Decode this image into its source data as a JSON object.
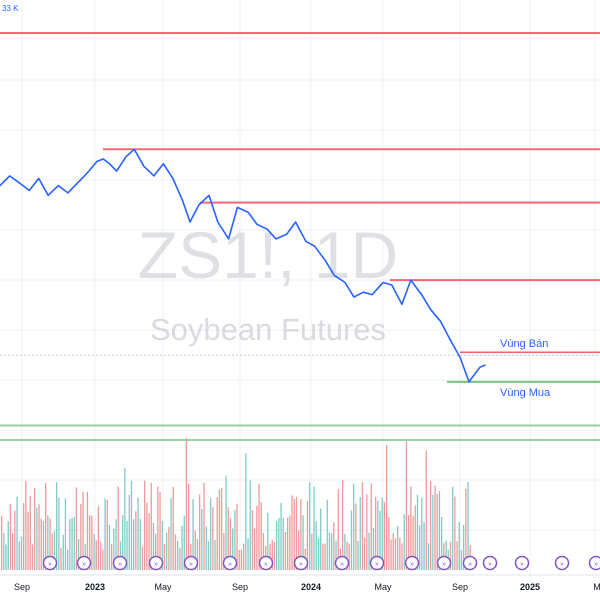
{
  "chart_data": {
    "type": "line",
    "symbol": "ZS1!, 1D",
    "name": "Soybean Futures",
    "volume_label": "33 K",
    "x_ticks": [
      "Sep",
      "2023",
      "May",
      "Sep",
      "2024",
      "May",
      "Sep",
      "2025",
      "M"
    ],
    "price_series": {
      "x": [
        "2022-07-01",
        "2022-07-15",
        "2022-08-01",
        "2022-08-20",
        "2022-09-05",
        "2022-09-20",
        "2022-10-05",
        "2022-10-20",
        "2022-11-05",
        "2022-11-20",
        "2022-12-05",
        "2022-12-20",
        "2023-01-05",
        "2023-01-15",
        "2023-01-25",
        "2023-02-05",
        "2023-02-20",
        "2023-03-05",
        "2023-03-20",
        "2023-04-05",
        "2023-04-20",
        "2023-05-05",
        "2023-05-20",
        "2023-06-01",
        "2023-06-15",
        "2023-07-01",
        "2023-07-15",
        "2023-08-01",
        "2023-08-15",
        "2023-09-01",
        "2023-09-15",
        "2023-10-01",
        "2023-10-15",
        "2023-11-01",
        "2023-11-15",
        "2023-12-01",
        "2023-12-15",
        "2024-01-01",
        "2024-01-15",
        "2024-02-01",
        "2024-02-15",
        "2024-03-01",
        "2024-03-15",
        "2024-04-01",
        "2024-04-15",
        "2024-05-01",
        "2024-05-15",
        "2024-06-01",
        "2024-06-15",
        "2024-07-01",
        "2024-07-15",
        "2024-08-01",
        "2024-08-15",
        "2024-09-01",
        "2024-09-10"
      ],
      "y": [
        1450,
        1435,
        1420,
        1445,
        1430,
        1415,
        1440,
        1405,
        1425,
        1410,
        1430,
        1450,
        1475,
        1480,
        1470,
        1455,
        1485,
        1500,
        1465,
        1445,
        1470,
        1440,
        1395,
        1350,
        1385,
        1405,
        1350,
        1315,
        1380,
        1370,
        1345,
        1335,
        1315,
        1325,
        1350,
        1310,
        1300,
        1270,
        1240,
        1225,
        1195,
        1205,
        1200,
        1225,
        1220,
        1180,
        1230,
        1200,
        1170,
        1145,
        1110,
        1070,
        1020,
        1050,
        1055
      ]
    },
    "horizontal_levels": [
      {
        "value": 1740,
        "color": "#f23645"
      },
      {
        "value": 1500,
        "color": "#f23645"
      },
      {
        "value": 1390,
        "color": "#f23645"
      },
      {
        "value": 1230,
        "color": "#f23645"
      },
      {
        "value": 1075,
        "color": "#f23645",
        "label": "Vùng Bán"
      },
      {
        "value": 1020,
        "color": "#4caf50",
        "label": "Vùng Mua"
      },
      {
        "value": 930,
        "color": "#4caf50"
      },
      {
        "value": 900,
        "color": "#4caf50"
      }
    ],
    "current_price": 1075,
    "colors": {
      "line": "#2962ff",
      "sell_zone": "#f23645",
      "buy_zone": "#4caf50",
      "vol_up": "#80cbc4",
      "vol_down": "#ef9a9a",
      "event": "#7e57c2"
    }
  }
}
